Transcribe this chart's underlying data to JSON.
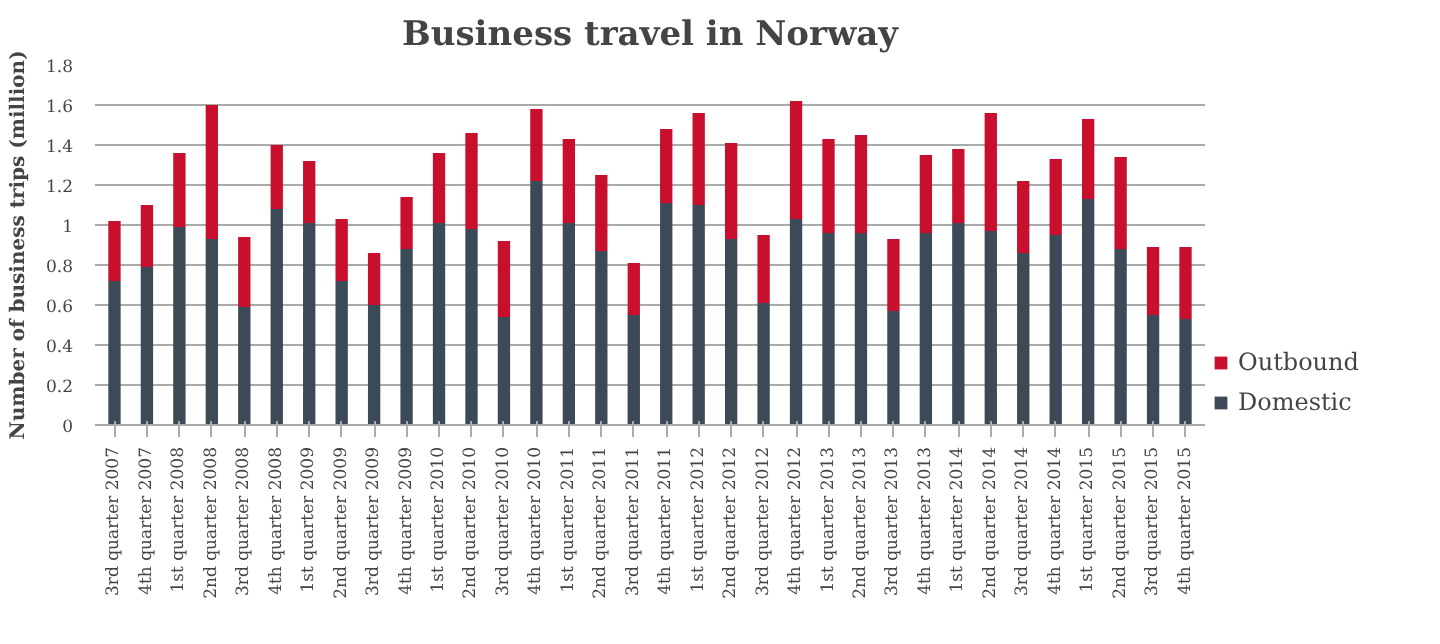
{
  "chart_data": {
    "type": "bar",
    "title": "Business travel in Norway",
    "ylabel": "Number of business trips (million)",
    "categories": [
      "3rd quarter 2007",
      "4th quarter 2007",
      "1st quarter 2008",
      "2nd quarter 2008",
      "3rd quarter 2008",
      "4th quarter 2008",
      "1st quarter 2009",
      "2nd quarter 2009",
      "3rd quarter 2009",
      "4th quarter 2009",
      "1st quarter 2010",
      "2nd quarter 2010",
      "3rd quarter 2010",
      "4th quarter 2010",
      "1st quarter 2011",
      "2nd quarter 2011",
      "3rd quarter 2011",
      "4th quarter 2011",
      "1st quarter 2012",
      "2nd quarter 2012",
      "3rd quarter 2012",
      "4th quarter 2012",
      "1st quarter 2013",
      "2nd quarter 2013",
      "3rd quarter 2013",
      "4th quarter 2013",
      "1st quarter 2014",
      "2nd quarter 2014",
      "3rd quarter 2014",
      "4th quarter 2014",
      "1st quarter 2015",
      "2nd quarter 2015",
      "3rd quarter 2015",
      "4th quarter 2015"
    ],
    "stacked": true,
    "series": [
      {
        "name": "Domestic",
        "color": "#3b4a56",
        "values": [
          0.72,
          0.79,
          0.99,
          0.93,
          0.59,
          1.08,
          1.01,
          0.72,
          0.6,
          0.88,
          1.01,
          0.98,
          0.54,
          1.22,
          1.01,
          0.87,
          0.55,
          1.11,
          1.1,
          0.93,
          0.61,
          1.03,
          0.96,
          0.96,
          0.57,
          0.96,
          1.01,
          0.97,
          0.86,
          0.95,
          1.13,
          0.88,
          0.55,
          0.53
        ]
      },
      {
        "name": "Outbound",
        "color": "#c8102e",
        "values": [
          0.3,
          0.31,
          0.37,
          0.67,
          0.35,
          0.32,
          0.31,
          0.31,
          0.26,
          0.26,
          0.35,
          0.48,
          0.38,
          0.36,
          0.42,
          0.38,
          0.26,
          0.37,
          0.46,
          0.48,
          0.34,
          0.59,
          0.47,
          0.49,
          0.36,
          0.39,
          0.37,
          0.59,
          0.36,
          0.38,
          0.4,
          0.46,
          0.34,
          0.36
        ]
      }
    ],
    "ylim": [
      0,
      1.8
    ],
    "yticks": [
      0,
      0.2,
      0.4,
      0.6,
      0.8,
      1,
      1.2,
      1.4,
      1.6,
      1.8
    ],
    "grid": "y",
    "legend": "right"
  }
}
